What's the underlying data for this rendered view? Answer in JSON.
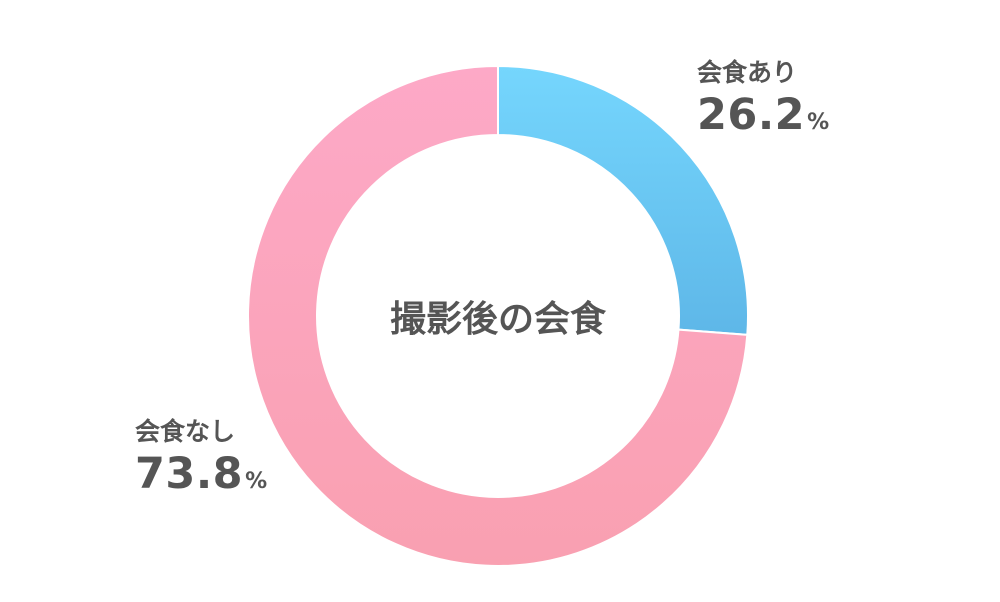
{
  "chart_data": {
    "type": "pie",
    "donut": true,
    "center_title": "撮影後の会食",
    "slices": [
      {
        "name": "会食あり",
        "value": 26.2,
        "unit": "%",
        "color_top": "#75d6fd",
        "color_bottom": "#5eb7e8"
      },
      {
        "name": "会食なし",
        "value": 73.8,
        "unit": "%",
        "color_top": "#fda9c7",
        "color_bottom": "#f9a0b1"
      }
    ],
    "start_angle": "12 o'clock",
    "direction": "clockwise",
    "legend": "none"
  }
}
